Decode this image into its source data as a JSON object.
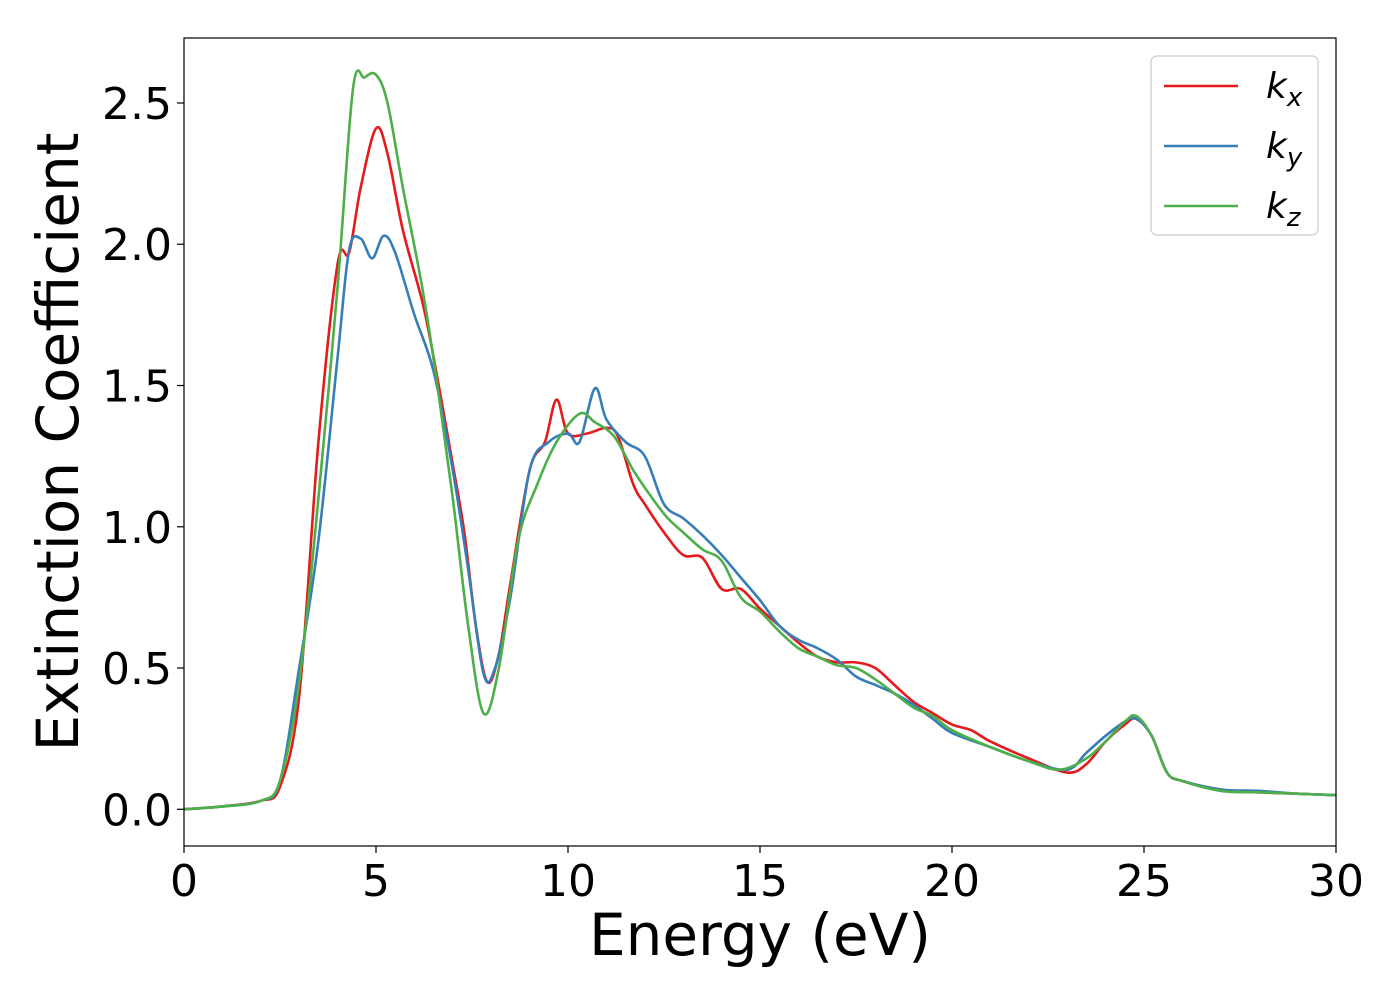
{
  "chart_data": {
    "type": "line",
    "title": "",
    "xlabel": "Energy (eV)",
    "ylabel": "Extinction Coefficient",
    "xlim": [
      0,
      30
    ],
    "ylim": [
      -0.13,
      2.73
    ],
    "xticks": [
      0,
      5,
      10,
      15,
      20,
      25,
      30
    ],
    "xtick_labels": [
      "0",
      "5",
      "10",
      "15",
      "20",
      "25",
      "30"
    ],
    "yticks": [
      0.0,
      0.5,
      1.0,
      1.5,
      2.0,
      2.5
    ],
    "ytick_labels": [
      "0.0",
      "0.5",
      "1.0",
      "1.5",
      "2.0",
      "2.5"
    ],
    "grid": false,
    "legend_position": "top-right",
    "series": [
      {
        "name": "kx",
        "label_main": "k",
        "label_sub": "x",
        "color": "#e41a1c",
        "points": [
          [
            0,
            0.0
          ],
          [
            1,
            0.01
          ],
          [
            2,
            0.03
          ],
          [
            2.5,
            0.08
          ],
          [
            3,
            0.4
          ],
          [
            3.5,
            1.3
          ],
          [
            4,
            1.93
          ],
          [
            4.3,
            1.97
          ],
          [
            4.6,
            2.2
          ],
          [
            5,
            2.41
          ],
          [
            5.3,
            2.32
          ],
          [
            5.7,
            2.05
          ],
          [
            6.2,
            1.8
          ],
          [
            6.5,
            1.6
          ],
          [
            7,
            1.22
          ],
          [
            7.3,
            0.98
          ],
          [
            7.6,
            0.65
          ],
          [
            7.9,
            0.45
          ],
          [
            8.2,
            0.55
          ],
          [
            8.5,
            0.8
          ],
          [
            9,
            1.2
          ],
          [
            9.4,
            1.3
          ],
          [
            9.7,
            1.45
          ],
          [
            10,
            1.33
          ],
          [
            10.5,
            1.33
          ],
          [
            11,
            1.35
          ],
          [
            11.3,
            1.32
          ],
          [
            11.7,
            1.15
          ],
          [
            12,
            1.08
          ],
          [
            12.5,
            0.98
          ],
          [
            13,
            0.9
          ],
          [
            13.5,
            0.89
          ],
          [
            14,
            0.78
          ],
          [
            14.5,
            0.78
          ],
          [
            15,
            0.71
          ],
          [
            15.5,
            0.65
          ],
          [
            16,
            0.59
          ],
          [
            16.5,
            0.54
          ],
          [
            17,
            0.52
          ],
          [
            17.5,
            0.52
          ],
          [
            18,
            0.5
          ],
          [
            18.5,
            0.44
          ],
          [
            19,
            0.38
          ],
          [
            19.5,
            0.34
          ],
          [
            20,
            0.3
          ],
          [
            20.5,
            0.28
          ],
          [
            21,
            0.24
          ],
          [
            22,
            0.18
          ],
          [
            23,
            0.13
          ],
          [
            23.5,
            0.16
          ],
          [
            24,
            0.24
          ],
          [
            24.5,
            0.3
          ],
          [
            24.8,
            0.32
          ],
          [
            25.2,
            0.26
          ],
          [
            25.6,
            0.13
          ],
          [
            26,
            0.1
          ],
          [
            27,
            0.07
          ],
          [
            28,
            0.06
          ],
          [
            29,
            0.055
          ],
          [
            30,
            0.05
          ]
        ]
      },
      {
        "name": "ky",
        "label_main": "k",
        "label_sub": "y",
        "color": "#377eb8",
        "points": [
          [
            0,
            0.0
          ],
          [
            1,
            0.01
          ],
          [
            2,
            0.03
          ],
          [
            2.5,
            0.1
          ],
          [
            3,
            0.5
          ],
          [
            3.5,
            0.95
          ],
          [
            4,
            1.6
          ],
          [
            4.3,
            1.98
          ],
          [
            4.6,
            2.02
          ],
          [
            4.9,
            1.95
          ],
          [
            5.2,
            2.03
          ],
          [
            5.5,
            1.97
          ],
          [
            6,
            1.75
          ],
          [
            6.5,
            1.55
          ],
          [
            7,
            1.2
          ],
          [
            7.4,
            0.85
          ],
          [
            7.8,
            0.48
          ],
          [
            8.1,
            0.5
          ],
          [
            8.5,
            0.75
          ],
          [
            9,
            1.2
          ],
          [
            9.5,
            1.3
          ],
          [
            10,
            1.33
          ],
          [
            10.3,
            1.3
          ],
          [
            10.7,
            1.49
          ],
          [
            11,
            1.38
          ],
          [
            11.5,
            1.3
          ],
          [
            12,
            1.25
          ],
          [
            12.5,
            1.08
          ],
          [
            13,
            1.03
          ],
          [
            13.5,
            0.97
          ],
          [
            14,
            0.9
          ],
          [
            14.5,
            0.82
          ],
          [
            15,
            0.74
          ],
          [
            15.5,
            0.65
          ],
          [
            16,
            0.6
          ],
          [
            16.5,
            0.57
          ],
          [
            17,
            0.53
          ],
          [
            17.5,
            0.47
          ],
          [
            18,
            0.44
          ],
          [
            18.5,
            0.41
          ],
          [
            19,
            0.37
          ],
          [
            19.5,
            0.32
          ],
          [
            20,
            0.27
          ],
          [
            21,
            0.22
          ],
          [
            22,
            0.17
          ],
          [
            23,
            0.14
          ],
          [
            23.5,
            0.2
          ],
          [
            24,
            0.26
          ],
          [
            24.5,
            0.31
          ],
          [
            24.8,
            0.32
          ],
          [
            25.2,
            0.26
          ],
          [
            25.6,
            0.13
          ],
          [
            26,
            0.1
          ],
          [
            27,
            0.07
          ],
          [
            28,
            0.065
          ],
          [
            29,
            0.055
          ],
          [
            30,
            0.05
          ]
        ]
      },
      {
        "name": "kz",
        "label_main": "k",
        "label_sub": "z",
        "color": "#4daf4a",
        "points": [
          [
            0,
            0.0
          ],
          [
            1,
            0.01
          ],
          [
            2,
            0.03
          ],
          [
            2.5,
            0.1
          ],
          [
            3,
            0.45
          ],
          [
            3.5,
            1.1
          ],
          [
            4,
            1.85
          ],
          [
            4.4,
            2.55
          ],
          [
            4.7,
            2.59
          ],
          [
            5,
            2.6
          ],
          [
            5.3,
            2.5
          ],
          [
            5.7,
            2.2
          ],
          [
            6.2,
            1.85
          ],
          [
            6.6,
            1.5
          ],
          [
            7,
            1.1
          ],
          [
            7.4,
            0.65
          ],
          [
            7.8,
            0.34
          ],
          [
            8.2,
            0.5
          ],
          [
            8.7,
            0.95
          ],
          [
            9.2,
            1.15
          ],
          [
            9.7,
            1.3
          ],
          [
            10.3,
            1.4
          ],
          [
            10.7,
            1.37
          ],
          [
            11.2,
            1.32
          ],
          [
            11.7,
            1.2
          ],
          [
            12.2,
            1.1
          ],
          [
            12.6,
            1.03
          ],
          [
            13,
            0.98
          ],
          [
            13.5,
            0.92
          ],
          [
            14,
            0.88
          ],
          [
            14.5,
            0.75
          ],
          [
            15,
            0.7
          ],
          [
            15.5,
            0.63
          ],
          [
            16,
            0.57
          ],
          [
            16.5,
            0.54
          ],
          [
            17,
            0.51
          ],
          [
            17.5,
            0.5
          ],
          [
            18,
            0.46
          ],
          [
            18.5,
            0.41
          ],
          [
            19,
            0.36
          ],
          [
            19.5,
            0.33
          ],
          [
            20,
            0.28
          ],
          [
            21,
            0.22
          ],
          [
            22,
            0.17
          ],
          [
            22.8,
            0.14
          ],
          [
            23.5,
            0.18
          ],
          [
            24,
            0.24
          ],
          [
            24.5,
            0.31
          ],
          [
            24.8,
            0.33
          ],
          [
            25.2,
            0.26
          ],
          [
            25.6,
            0.13
          ],
          [
            26,
            0.1
          ],
          [
            27,
            0.065
          ],
          [
            28,
            0.06
          ],
          [
            29,
            0.055
          ],
          [
            30,
            0.05
          ]
        ]
      }
    ]
  }
}
